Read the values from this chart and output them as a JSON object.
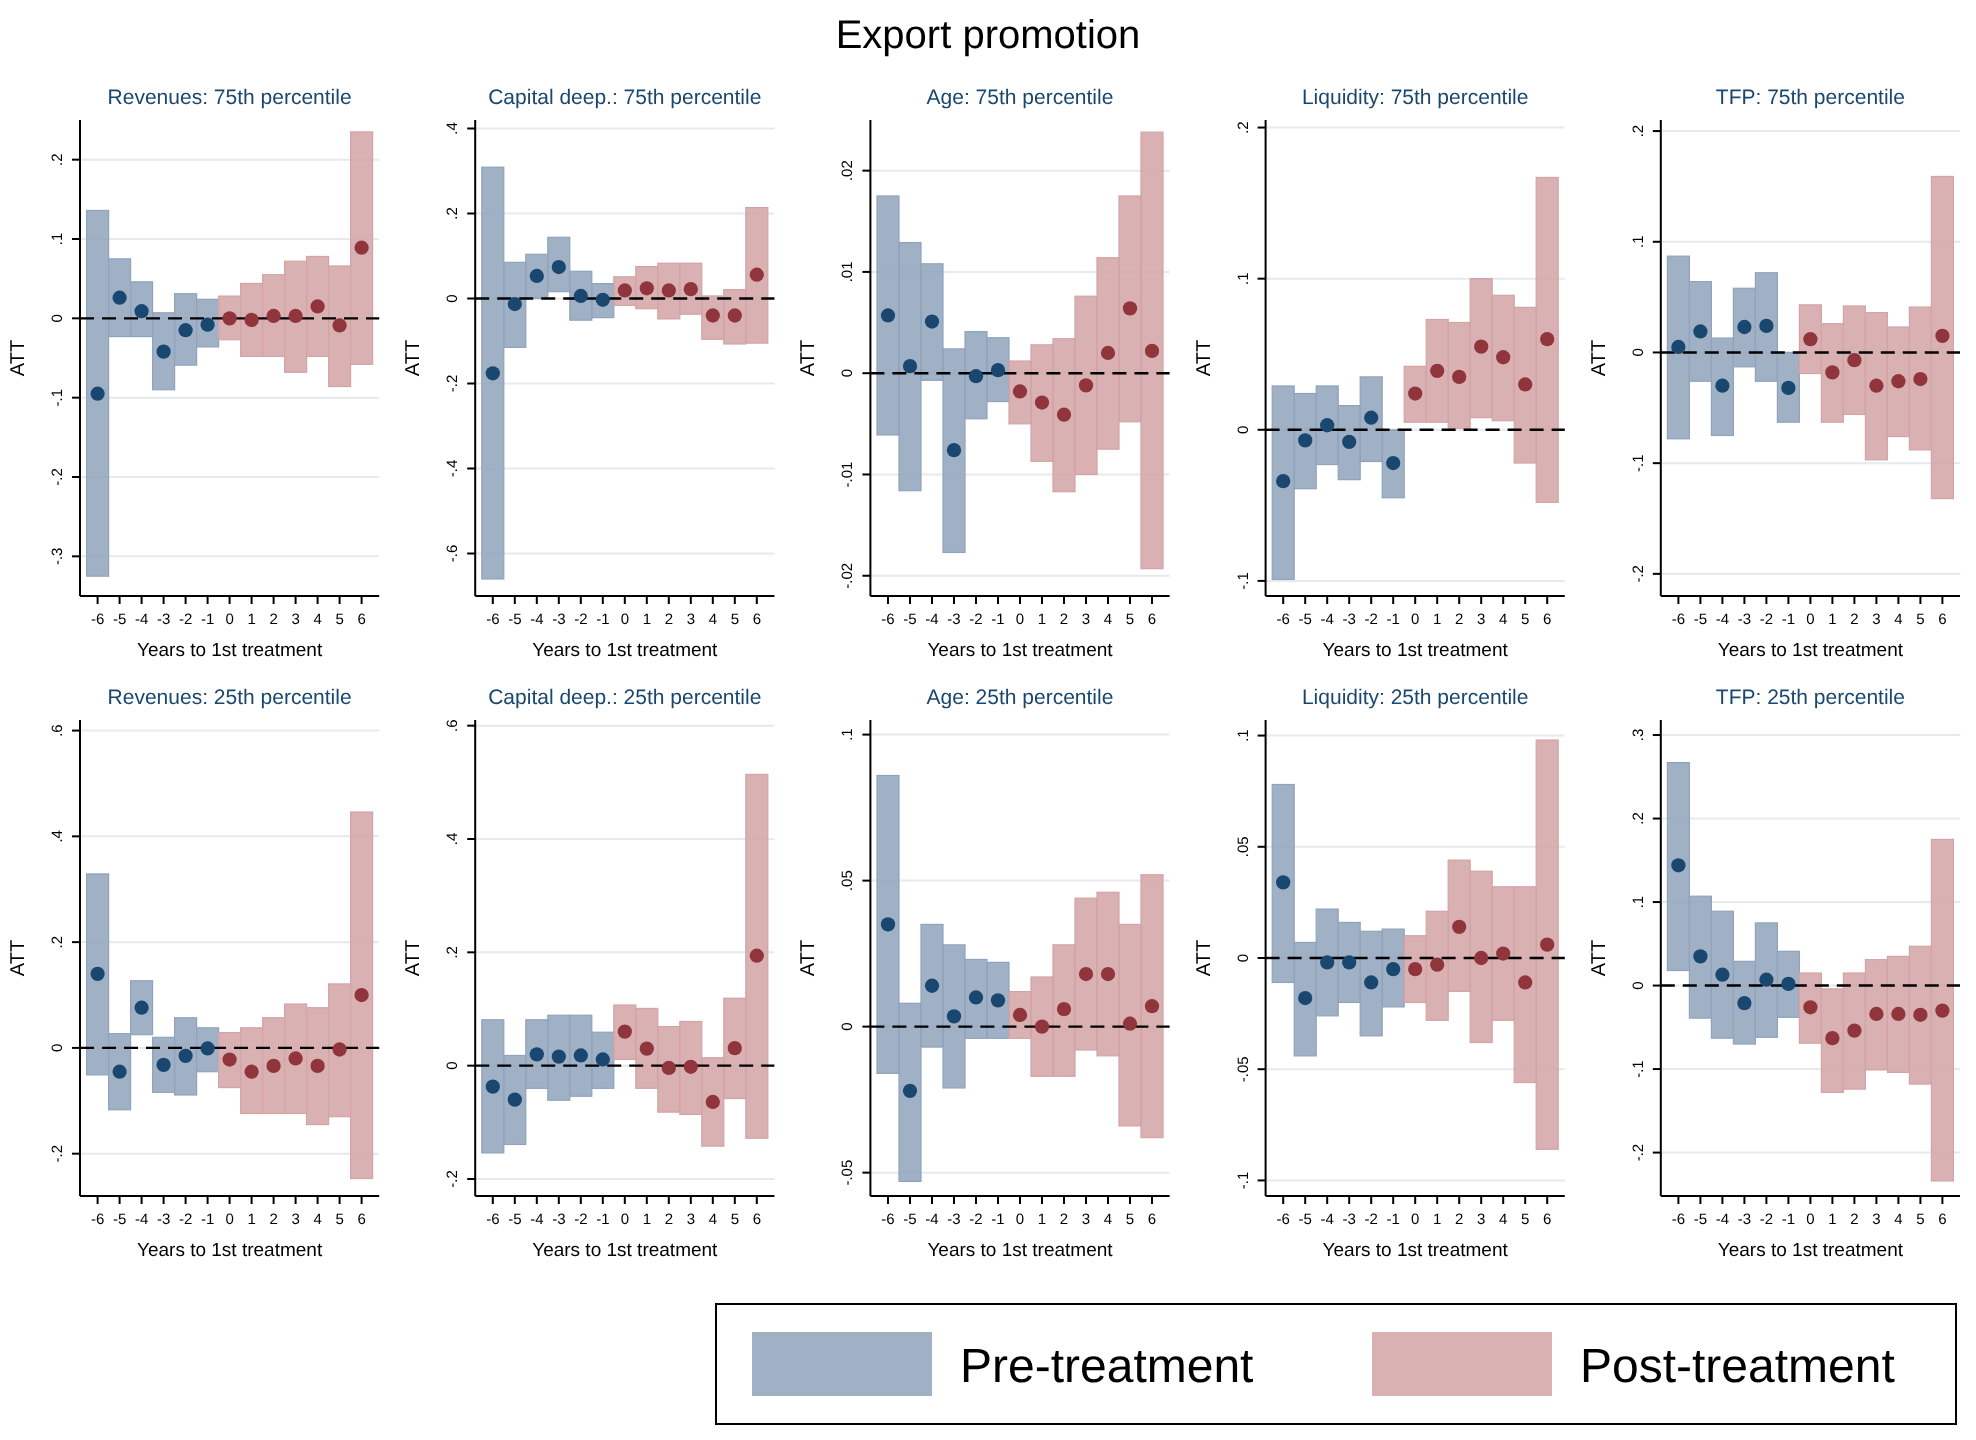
{
  "chart_data": [
    {
      "type": "scatter",
      "title": "Revenues: 75th percentile",
      "annotations": [
        "Export promotion"
      ],
      "xlabel": "Years to 1st treatment",
      "ylabel": "ATT",
      "xlim": [
        -6.8,
        6.8
      ],
      "xticks": [
        -6,
        -5,
        -4,
        -3,
        -2,
        -1,
        0,
        1,
        2,
        3,
        4,
        5,
        6
      ],
      "ylim": [
        -0.35,
        0.25
      ],
      "yticks": [
        {
          "value": 0.2,
          "label": ".2"
        },
        {
          "value": 0.1,
          "label": ".1"
        },
        {
          "value": 0,
          "label": "0"
        },
        {
          "value": -0.1,
          "label": "-.1"
        },
        {
          "value": -0.2,
          "label": "-.2"
        },
        {
          "value": -0.3,
          "label": "-.3"
        }
      ],
      "grid": "y",
      "marker": "circle",
      "legend": "bottom right",
      "ref_lines": [
        {
          "axis": "y",
          "value": 0,
          "line_style": "dashed",
          "color": "#000000"
        }
      ],
      "series": [
        {
          "type": "bar",
          "name": "Pre-treatment",
          "color": "#8fa3bc",
          "x": [
            -6,
            -5,
            -4,
            -3,
            -2,
            -1
          ],
          "base": [
            -0.325,
            -0.023,
            -0.023,
            -0.09,
            -0.059,
            -0.036
          ],
          "values": [
            0.461,
            0.098,
            0.069,
            0.097,
            0.09,
            0.06
          ]
        },
        {
          "type": "bar",
          "name": "Post-treatment",
          "color": "#d3a3a6",
          "x": [
            0,
            1,
            2,
            3,
            4,
            5,
            6
          ],
          "base": [
            -0.027,
            -0.048,
            -0.048,
            -0.068,
            -0.048,
            -0.086,
            -0.058
          ],
          "values": [
            0.055,
            0.092,
            0.103,
            0.14,
            0.126,
            0.152,
            0.293
          ]
        },
        {
          "type": "scatter",
          "color": "#1a476f",
          "x": [
            -6,
            -5,
            -4,
            -3,
            -2,
            -1
          ],
          "values": [
            -0.095,
            0.026,
            0.009,
            -0.042,
            -0.015,
            -0.008
          ]
        },
        {
          "type": "scatter",
          "color": "#90353b",
          "x": [
            0,
            1,
            2,
            3,
            4,
            5,
            6
          ],
          "values": [
            0,
            -0.002,
            0.003,
            0.003,
            0.015,
            -0.009,
            0.089
          ]
        }
      ]
    },
    {
      "type": "scatter",
      "title": "Capital deep.: 75th percentile",
      "xlabel": "Years to 1st treatment",
      "ylabel": "ATT",
      "xlim": [
        -6.8,
        6.8
      ],
      "xticks": [
        -6,
        -5,
        -4,
        -3,
        -2,
        -1,
        0,
        1,
        2,
        3,
        4,
        5,
        6
      ],
      "ylim": [
        -0.7,
        0.42
      ],
      "yticks": [
        {
          "value": 0.4,
          "label": ".4"
        },
        {
          "value": 0.2,
          "label": ".2"
        },
        {
          "value": 0,
          "label": "0"
        },
        {
          "value": -0.2,
          "label": "-.2"
        },
        {
          "value": -0.4,
          "label": "-.4"
        },
        {
          "value": -0.6,
          "label": "-.6"
        }
      ],
      "grid": "y",
      "marker": "circle",
      "ref_lines": [
        {
          "axis": "y",
          "value": 0,
          "line_style": "dashed",
          "color": "#000000"
        }
      ],
      "series": [
        {
          "type": "bar",
          "color": "#8fa3bc",
          "x": [
            -6,
            -5,
            -4,
            -3,
            -2,
            -1
          ],
          "base": [
            -0.66,
            -0.115,
            0,
            0.016,
            -0.051,
            -0.045
          ],
          "values": [
            0.969,
            0.2,
            0.104,
            0.128,
            0.115,
            0.08
          ]
        },
        {
          "type": "bar",
          "color": "#d3a3a6",
          "x": [
            0,
            1,
            2,
            3,
            4,
            5,
            6
          ],
          "base": [
            -0.016,
            -0.024,
            -0.048,
            -0.037,
            -0.096,
            -0.107,
            -0.105
          ],
          "values": [
            0.067,
            0.099,
            0.131,
            0.12,
            0.102,
            0.128,
            0.319
          ]
        },
        {
          "type": "scatter",
          "color": "#1a476f",
          "x": [
            -6,
            -5,
            -4,
            -3,
            -2,
            -1
          ],
          "values": [
            -0.176,
            -0.013,
            0.053,
            0.074,
            0.006,
            -0.003
          ]
        },
        {
          "type": "scatter",
          "color": "#90353b",
          "x": [
            0,
            1,
            2,
            3,
            4,
            5,
            6
          ],
          "values": [
            0.019,
            0.024,
            0.019,
            0.022,
            -0.04,
            -0.04,
            0.056
          ]
        }
      ]
    },
    {
      "type": "scatter",
      "title": "Age: 75th percentile",
      "xlabel": "Years to 1st treatment",
      "ylabel": "ATT",
      "xlim": [
        -6.8,
        6.8
      ],
      "xticks": [
        -6,
        -5,
        -4,
        -3,
        -2,
        -1,
        0,
        1,
        2,
        3,
        4,
        5,
        6
      ],
      "ylim": [
        -0.022,
        0.025
      ],
      "yticks": [
        {
          "value": 0.02,
          "label": ".02"
        },
        {
          "value": 0.01,
          "label": ".01"
        },
        {
          "value": 0,
          "label": "0"
        },
        {
          "value": -0.01,
          "label": "-.01"
        },
        {
          "value": -0.02,
          "label": "-.02"
        }
      ],
      "grid": "y",
      "marker": "circle",
      "ref_lines": [
        {
          "axis": "y",
          "value": 0,
          "line_style": "dashed",
          "color": "#000000"
        }
      ],
      "series": [
        {
          "type": "bar",
          "color": "#8fa3bc",
          "x": [
            -6,
            -5,
            -4,
            -3,
            -2,
            -1
          ],
          "base": [
            -0.0061,
            -0.0116,
            -0.0007,
            -0.0177,
            -0.0045,
            -0.0028
          ],
          "values": [
            0.0236,
            0.0245,
            0.0115,
            0.0201,
            0.0086,
            0.0063
          ]
        },
        {
          "type": "bar",
          "color": "#d3a3a6",
          "x": [
            0,
            1,
            2,
            3,
            4,
            5,
            6
          ],
          "base": [
            -0.005,
            -0.0087,
            -0.0117,
            -0.01,
            -0.0075,
            -0.0048,
            -0.0193
          ],
          "values": [
            0.0062,
            0.0115,
            0.0151,
            0.0176,
            0.0189,
            0.0223,
            0.0431
          ]
        },
        {
          "type": "scatter",
          "color": "#1a476f",
          "x": [
            -6,
            -5,
            -4,
            -3,
            -2,
            -1
          ],
          "values": [
            0.0057,
            0.0007,
            0.0051,
            -0.0076,
            -0.0003,
            0.0003
          ]
        },
        {
          "type": "scatter",
          "color": "#90353b",
          "x": [
            0,
            1,
            2,
            3,
            4,
            5,
            6
          ],
          "values": [
            -0.0018,
            -0.0029,
            -0.0041,
            -0.0012,
            0.002,
            0.0064,
            0.0022
          ]
        }
      ]
    },
    {
      "type": "scatter",
      "title": "Liquidity: 75th percentile",
      "xlabel": "Years to 1st treatment",
      "ylabel": "ATT",
      "xlim": [
        -6.8,
        6.8
      ],
      "xticks": [
        -6,
        -5,
        -4,
        -3,
        -2,
        -1,
        0,
        1,
        2,
        3,
        4,
        5,
        6
      ],
      "ylim": [
        -0.11,
        0.205
      ],
      "yticks": [
        {
          "value": 0.2,
          "label": ".2"
        },
        {
          "value": 0.1,
          "label": ".1"
        },
        {
          "value": 0,
          "label": "0"
        },
        {
          "value": -0.1,
          "label": "-.1"
        }
      ],
      "grid": "y",
      "marker": "circle",
      "ref_lines": [
        {
          "axis": "y",
          "value": 0,
          "line_style": "dashed",
          "color": "#000000"
        }
      ],
      "series": [
        {
          "type": "bar",
          "color": "#8fa3bc",
          "x": [
            -6,
            -5,
            -4,
            -3,
            -2,
            -1
          ],
          "base": [
            -0.099,
            -0.039,
            -0.023,
            -0.033,
            -0.021,
            -0.045
          ],
          "values": [
            0.128,
            0.063,
            0.052,
            0.049,
            0.056,
            0.045
          ]
        },
        {
          "type": "bar",
          "color": "#d3a3a6",
          "x": [
            0,
            1,
            2,
            3,
            4,
            5,
            6
          ],
          "base": [
            0.005,
            0.005,
            0.001,
            0.008,
            0.006,
            -0.022,
            -0.048
          ],
          "values": [
            0.037,
            0.068,
            0.07,
            0.092,
            0.083,
            0.103,
            0.215
          ]
        },
        {
          "type": "scatter",
          "color": "#1a476f",
          "x": [
            -6,
            -5,
            -4,
            -3,
            -2,
            -1
          ],
          "values": [
            -0.034,
            -0.007,
            0.003,
            -0.008,
            0.008,
            -0.022
          ]
        },
        {
          "type": "scatter",
          "color": "#90353b",
          "x": [
            0,
            1,
            2,
            3,
            4,
            5,
            6
          ],
          "values": [
            0.024,
            0.039,
            0.035,
            0.055,
            0.048,
            0.03,
            0.06
          ]
        }
      ]
    },
    {
      "type": "scatter",
      "title": "TFP: 75th percentile",
      "xlabel": "Years to 1st treatment",
      "ylabel": "ATT",
      "xlim": [
        -6.8,
        6.8
      ],
      "xticks": [
        -6,
        -5,
        -4,
        -3,
        -2,
        -1,
        0,
        1,
        2,
        3,
        4,
        5,
        6
      ],
      "ylim": [
        -0.22,
        0.21
      ],
      "yticks": [
        {
          "value": 0.2,
          "label": ".2"
        },
        {
          "value": 0.1,
          "label": ".1"
        },
        {
          "value": 0,
          "label": "0"
        },
        {
          "value": -0.1,
          "label": "-.1"
        },
        {
          "value": -0.2,
          "label": "-.2"
        }
      ],
      "grid": "y",
      "marker": "circle",
      "ref_lines": [
        {
          "axis": "y",
          "value": 0,
          "line_style": "dashed",
          "color": "#000000"
        }
      ],
      "series": [
        {
          "type": "bar",
          "color": "#8fa3bc",
          "x": [
            -6,
            -5,
            -4,
            -3,
            -2,
            -1
          ],
          "base": [
            -0.078,
            -0.026,
            -0.075,
            -0.013,
            -0.026,
            -0.063
          ],
          "values": [
            0.165,
            0.09,
            0.088,
            0.071,
            0.098,
            0.063
          ]
        },
        {
          "type": "bar",
          "color": "#d3a3a6",
          "x": [
            0,
            1,
            2,
            3,
            4,
            5,
            6
          ],
          "base": [
            -0.019,
            -0.063,
            -0.056,
            -0.097,
            -0.076,
            -0.088,
            -0.132
          ],
          "values": [
            0.062,
            0.089,
            0.098,
            0.133,
            0.099,
            0.129,
            0.291
          ]
        },
        {
          "type": "scatter",
          "color": "#1a476f",
          "x": [
            -6,
            -5,
            -4,
            -3,
            -2,
            -1
          ],
          "values": [
            0.005,
            0.019,
            -0.03,
            0.023,
            0.024,
            -0.032
          ]
        },
        {
          "type": "scatter",
          "color": "#90353b",
          "x": [
            0,
            1,
            2,
            3,
            4,
            5,
            6
          ],
          "values": [
            0.012,
            -0.018,
            -0.007,
            -0.03,
            -0.026,
            -0.024,
            0.015
          ]
        }
      ]
    },
    {
      "type": "scatter",
      "title": "Revenues: 25th percentile",
      "xlabel": "Years to 1st treatment",
      "ylabel": "ATT",
      "xlim": [
        -6.8,
        6.8
      ],
      "xticks": [
        -6,
        -5,
        -4,
        -3,
        -2,
        -1,
        0,
        1,
        2,
        3,
        4,
        5,
        6
      ],
      "ylim": [
        -0.28,
        0.62
      ],
      "yticks": [
        {
          "value": 0.6,
          "label": ".6"
        },
        {
          "value": 0.4,
          "label": ".4"
        },
        {
          "value": 0.2,
          "label": ".2"
        },
        {
          "value": 0,
          "label": "0"
        },
        {
          "value": -0.2,
          "label": "-.2"
        }
      ],
      "grid": "y",
      "marker": "circle",
      "ref_lines": [
        {
          "axis": "y",
          "value": 0,
          "line_style": "dashed",
          "color": "#000000"
        }
      ],
      "series": [
        {
          "type": "bar",
          "color": "#8fa3bc",
          "x": [
            -6,
            -5,
            -4,
            -3,
            -2,
            -1
          ],
          "base": [
            -0.051,
            -0.117,
            0.025,
            -0.084,
            -0.089,
            -0.045
          ],
          "values": [
            0.38,
            0.144,
            0.102,
            0.104,
            0.146,
            0.083
          ]
        },
        {
          "type": "bar",
          "color": "#d3a3a6",
          "x": [
            0,
            1,
            2,
            3,
            4,
            5,
            6
          ],
          "base": [
            -0.075,
            -0.124,
            -0.124,
            -0.124,
            -0.145,
            -0.13,
            -0.247
          ],
          "values": [
            0.104,
            0.162,
            0.181,
            0.207,
            0.221,
            0.251,
            0.693
          ]
        },
        {
          "type": "scatter",
          "color": "#1a476f",
          "x": [
            -6,
            -5,
            -4,
            -3,
            -2,
            -1
          ],
          "values": [
            0.14,
            -0.045,
            0.076,
            -0.032,
            -0.015,
            -0.001
          ]
        },
        {
          "type": "scatter",
          "color": "#90353b",
          "x": [
            0,
            1,
            2,
            3,
            4,
            5,
            6
          ],
          "values": [
            -0.022,
            -0.045,
            -0.034,
            -0.02,
            -0.034,
            -0.003,
            0.1
          ]
        }
      ]
    },
    {
      "type": "scatter",
      "title": "Capital deep.: 25th percentile",
      "xlabel": "Years to 1st treatment",
      "ylabel": "ATT",
      "xlim": [
        -6.8,
        6.8
      ],
      "xticks": [
        -6,
        -5,
        -4,
        -3,
        -2,
        -1,
        0,
        1,
        2,
        3,
        4,
        5,
        6
      ],
      "ylim": [
        -0.23,
        0.61
      ],
      "yticks": [
        {
          "value": 0.6,
          "label": ".6"
        },
        {
          "value": 0.4,
          "label": ".4"
        },
        {
          "value": 0.2,
          "label": ".2"
        },
        {
          "value": 0,
          "label": "0"
        },
        {
          "value": -0.2,
          "label": "-.2"
        }
      ],
      "grid": "y",
      "marker": "circle",
      "ref_lines": [
        {
          "axis": "y",
          "value": 0,
          "line_style": "dashed",
          "color": "#000000"
        }
      ],
      "series": [
        {
          "type": "bar",
          "color": "#8fa3bc",
          "x": [
            -6,
            -5,
            -4,
            -3,
            -2,
            -1
          ],
          "base": [
            -0.154,
            -0.139,
            -0.04,
            -0.061,
            -0.054,
            -0.04
          ],
          "values": [
            0.235,
            0.157,
            0.121,
            0.15,
            0.143,
            0.099
          ]
        },
        {
          "type": "bar",
          "color": "#d3a3a6",
          "x": [
            0,
            1,
            2,
            3,
            4,
            5,
            6
          ],
          "base": [
            0.011,
            -0.04,
            -0.082,
            -0.086,
            -0.142,
            -0.058,
            -0.128
          ],
          "values": [
            0.096,
            0.141,
            0.151,
            0.164,
            0.156,
            0.177,
            0.642
          ]
        },
        {
          "type": "scatter",
          "color": "#1a476f",
          "x": [
            -6,
            -5,
            -4,
            -3,
            -2,
            -1
          ],
          "values": [
            -0.037,
            -0.06,
            0.02,
            0.016,
            0.018,
            0.011
          ]
        },
        {
          "type": "scatter",
          "color": "#90353b",
          "x": [
            0,
            1,
            2,
            3,
            4,
            5,
            6
          ],
          "values": [
            0.06,
            0.03,
            -0.004,
            -0.002,
            -0.064,
            0.031,
            0.194
          ]
        }
      ]
    },
    {
      "type": "scatter",
      "title": "Age: 25th percentile",
      "xlabel": "Years to 1st treatment",
      "ylabel": "ATT",
      "xlim": [
        -6.8,
        6.8
      ],
      "xticks": [
        -6,
        -5,
        -4,
        -3,
        -2,
        -1,
        0,
        1,
        2,
        3,
        4,
        5,
        6
      ],
      "ylim": [
        -0.058,
        0.105
      ],
      "yticks": [
        {
          "value": 0.1,
          "label": ".1"
        },
        {
          "value": 0.05,
          "label": ".05"
        },
        {
          "value": 0,
          "label": "0"
        },
        {
          "value": -0.05,
          "label": "-.05"
        }
      ],
      "grid": "y",
      "marker": "circle",
      "ref_lines": [
        {
          "axis": "y",
          "value": 0,
          "line_style": "dashed",
          "color": "#000000"
        }
      ],
      "series": [
        {
          "type": "bar",
          "color": "#8fa3bc",
          "x": [
            -6,
            -5,
            -4,
            -3,
            -2,
            -1
          ],
          "base": [
            -0.016,
            -0.053,
            -0.007,
            -0.021,
            -0.004,
            -0.004
          ],
          "values": [
            0.102,
            0.061,
            0.042,
            0.049,
            0.027,
            0.026
          ]
        },
        {
          "type": "bar",
          "color": "#d3a3a6",
          "x": [
            0,
            1,
            2,
            3,
            4,
            5,
            6
          ],
          "base": [
            -0.004,
            -0.017,
            -0.017,
            -0.008,
            -0.01,
            -0.034,
            -0.038
          ],
          "values": [
            0.016,
            0.034,
            0.045,
            0.052,
            0.056,
            0.069,
            0.09
          ]
        },
        {
          "type": "scatter",
          "color": "#1a476f",
          "x": [
            -6,
            -5,
            -4,
            -3,
            -2,
            -1
          ],
          "values": [
            0.035,
            -0.022,
            0.014,
            0.0035,
            0.01,
            0.009
          ]
        },
        {
          "type": "scatter",
          "color": "#90353b",
          "x": [
            0,
            1,
            2,
            3,
            4,
            5,
            6
          ],
          "values": [
            0.004,
            0,
            0.006,
            0.018,
            0.018,
            0.001,
            0.007
          ]
        }
      ]
    },
    {
      "type": "scatter",
      "title": "Liquidity: 25th percentile",
      "xlabel": "Years to 1st treatment",
      "ylabel": "ATT",
      "xlim": [
        -6.8,
        6.8
      ],
      "xticks": [
        -6,
        -5,
        -4,
        -3,
        -2,
        -1,
        0,
        1,
        2,
        3,
        4,
        5,
        6
      ],
      "ylim": [
        -0.107,
        0.107
      ],
      "yticks": [
        {
          "value": 0.1,
          "label": ".1"
        },
        {
          "value": 0.05,
          "label": ".05"
        },
        {
          "value": 0,
          "label": "0"
        },
        {
          "value": -0.05,
          "label": "-.05"
        },
        {
          "value": -0.1,
          "label": "-.1"
        }
      ],
      "grid": "y",
      "marker": "circle",
      "ref_lines": [
        {
          "axis": "y",
          "value": 0,
          "line_style": "dashed",
          "color": "#000000"
        }
      ],
      "series": [
        {
          "type": "bar",
          "color": "#8fa3bc",
          "x": [
            -6,
            -5,
            -4,
            -3,
            -2,
            -1
          ],
          "base": [
            -0.011,
            -0.044,
            -0.026,
            -0.02,
            -0.035,
            -0.022
          ],
          "values": [
            0.089,
            0.051,
            0.048,
            0.036,
            0.047,
            0.035
          ]
        },
        {
          "type": "bar",
          "color": "#d3a3a6",
          "x": [
            0,
            1,
            2,
            3,
            4,
            5,
            6
          ],
          "base": [
            -0.02,
            -0.028,
            -0.015,
            -0.038,
            -0.028,
            -0.056,
            -0.086
          ],
          "values": [
            0.03,
            0.049,
            0.059,
            0.077,
            0.06,
            0.088,
            0.184
          ]
        },
        {
          "type": "scatter",
          "color": "#1a476f",
          "x": [
            -6,
            -5,
            -4,
            -3,
            -2,
            -1
          ],
          "values": [
            0.034,
            -0.018,
            -0.002,
            -0.002,
            -0.011,
            -0.005
          ]
        },
        {
          "type": "scatter",
          "color": "#90353b",
          "x": [
            0,
            1,
            2,
            3,
            4,
            5,
            6
          ],
          "values": [
            -0.005,
            -0.003,
            0.014,
            0,
            0.002,
            -0.011,
            0.006
          ]
        }
      ]
    },
    {
      "type": "scatter",
      "title": "TFP: 25th percentile",
      "xlabel": "Years to 1st treatment",
      "ylabel": "ATT",
      "xlim": [
        -6.8,
        6.8
      ],
      "xticks": [
        -6,
        -5,
        -4,
        -3,
        -2,
        -1,
        0,
        1,
        2,
        3,
        4,
        5,
        6
      ],
      "ylim": [
        -0.252,
        0.318
      ],
      "yticks": [
        {
          "value": 0.3,
          "label": ".3"
        },
        {
          "value": 0.2,
          "label": ".2"
        },
        {
          "value": 0.1,
          "label": ".1"
        },
        {
          "value": 0,
          "label": "0"
        },
        {
          "value": -0.1,
          "label": "-.1"
        },
        {
          "value": -0.2,
          "label": "-.2"
        }
      ],
      "grid": "y",
      "marker": "circle",
      "ref_lines": [
        {
          "axis": "y",
          "value": 0,
          "line_style": "dashed",
          "color": "#000000"
        }
      ],
      "series": [
        {
          "type": "bar",
          "color": "#8fa3bc",
          "x": [
            -6,
            -5,
            -4,
            -3,
            -2,
            -1
          ],
          "base": [
            0.018,
            -0.039,
            -0.063,
            -0.07,
            -0.062,
            -0.038
          ],
          "values": [
            0.249,
            0.146,
            0.152,
            0.099,
            0.137,
            0.079
          ]
        },
        {
          "type": "bar",
          "color": "#d3a3a6",
          "x": [
            0,
            1,
            2,
            3,
            4,
            5,
            6
          ],
          "base": [
            -0.069,
            -0.128,
            -0.124,
            -0.101,
            -0.104,
            -0.118,
            -0.234
          ],
          "values": [
            0.084,
            0.124,
            0.139,
            0.132,
            0.139,
            0.165,
            0.409
          ]
        },
        {
          "type": "scatter",
          "color": "#1a476f",
          "x": [
            -6,
            -5,
            -4,
            -3,
            -2,
            -1
          ],
          "values": [
            0.144,
            0.035,
            0.013,
            -0.021,
            0.007,
            0.002
          ]
        },
        {
          "type": "scatter",
          "color": "#90353b",
          "x": [
            0,
            1,
            2,
            3,
            4,
            5,
            6
          ],
          "values": [
            -0.026,
            -0.063,
            -0.054,
            -0.034,
            -0.034,
            -0.035,
            -0.03
          ]
        }
      ]
    }
  ]
}
